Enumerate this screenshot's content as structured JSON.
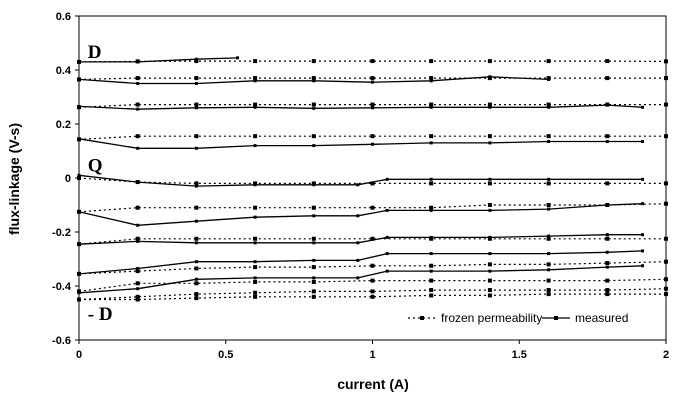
{
  "chart_data": {
    "type": "line",
    "title": "",
    "xlabel": "current (A)",
    "ylabel": "flux-linkage (V-s)",
    "xlim": [
      0,
      2
    ],
    "ylim": [
      -0.6,
      0.6
    ],
    "xticks": [
      "0",
      "0.5",
      "1",
      "1.5",
      "2"
    ],
    "yticks": [
      "-0.6",
      "-0.4",
      "-0.2",
      "0",
      "0.2",
      "0.4",
      "0.6"
    ],
    "grid": false,
    "legend_position": "bottom-right",
    "legend": [
      {
        "label": "frozen permeability",
        "style": "dotted"
      },
      {
        "label": "measured",
        "style": "solid"
      }
    ],
    "annotations": [
      {
        "text": "D",
        "x": 0.03,
        "y": 0.47
      },
      {
        "text": "Q",
        "x": 0.03,
        "y": 0.05
      },
      {
        "text": "- D",
        "x": 0.03,
        "y": -0.5
      }
    ],
    "series": [
      {
        "group": "frozen permeability",
        "points": [
          [
            0,
            0.43
          ],
          [
            0.2,
            0.432
          ],
          [
            0.4,
            0.433
          ],
          [
            0.6,
            0.433
          ],
          [
            0.8,
            0.433
          ],
          [
            1.0,
            0.433
          ],
          [
            1.2,
            0.433
          ],
          [
            1.4,
            0.433
          ],
          [
            1.6,
            0.433
          ],
          [
            1.8,
            0.433
          ],
          [
            2.0,
            0.432
          ]
        ]
      },
      {
        "group": "frozen permeability",
        "points": [
          [
            0,
            0.365
          ],
          [
            0.2,
            0.37
          ],
          [
            0.4,
            0.37
          ],
          [
            0.6,
            0.37
          ],
          [
            0.8,
            0.37
          ],
          [
            1.0,
            0.37
          ],
          [
            1.2,
            0.37
          ],
          [
            1.4,
            0.37
          ],
          [
            1.6,
            0.37
          ],
          [
            1.8,
            0.37
          ],
          [
            2.0,
            0.37
          ]
        ]
      },
      {
        "group": "frozen permeability",
        "points": [
          [
            0,
            0.262
          ],
          [
            0.2,
            0.272
          ],
          [
            0.4,
            0.272
          ],
          [
            0.6,
            0.272
          ],
          [
            0.8,
            0.272
          ],
          [
            1.0,
            0.272
          ],
          [
            1.2,
            0.272
          ],
          [
            1.4,
            0.272
          ],
          [
            1.6,
            0.272
          ],
          [
            1.8,
            0.272
          ],
          [
            2.0,
            0.272
          ]
        ]
      },
      {
        "group": "frozen permeability",
        "points": [
          [
            0,
            0.143
          ],
          [
            0.2,
            0.155
          ],
          [
            0.4,
            0.155
          ],
          [
            0.6,
            0.155
          ],
          [
            0.8,
            0.155
          ],
          [
            1.0,
            0.155
          ],
          [
            1.2,
            0.155
          ],
          [
            1.4,
            0.155
          ],
          [
            1.6,
            0.155
          ],
          [
            1.8,
            0.155
          ],
          [
            2.0,
            0.155
          ]
        ]
      },
      {
        "group": "frozen permeability",
        "points": [
          [
            0,
            0.0
          ],
          [
            0.2,
            -0.015
          ],
          [
            0.4,
            -0.02
          ],
          [
            0.6,
            -0.02
          ],
          [
            0.8,
            -0.02
          ],
          [
            1.0,
            -0.02
          ],
          [
            1.2,
            -0.02
          ],
          [
            1.4,
            -0.02
          ],
          [
            1.6,
            -0.02
          ],
          [
            1.8,
            -0.02
          ],
          [
            2.0,
            -0.02
          ]
        ]
      },
      {
        "group": "frozen permeability",
        "points": [
          [
            0,
            -0.125
          ],
          [
            0.2,
            -0.11
          ],
          [
            0.4,
            -0.11
          ],
          [
            0.6,
            -0.11
          ],
          [
            0.8,
            -0.11
          ],
          [
            1.0,
            -0.11
          ],
          [
            1.2,
            -0.11
          ],
          [
            1.4,
            -0.1
          ],
          [
            1.6,
            -0.1
          ],
          [
            1.8,
            -0.1
          ],
          [
            2.0,
            -0.095
          ]
        ]
      },
      {
        "group": "frozen permeability",
        "points": [
          [
            0,
            -0.245
          ],
          [
            0.2,
            -0.225
          ],
          [
            0.4,
            -0.225
          ],
          [
            0.6,
            -0.225
          ],
          [
            0.8,
            -0.225
          ],
          [
            1.0,
            -0.225
          ],
          [
            1.2,
            -0.225
          ],
          [
            1.4,
            -0.225
          ],
          [
            1.6,
            -0.225
          ],
          [
            1.8,
            -0.225
          ],
          [
            2.0,
            -0.225
          ]
        ]
      },
      {
        "group": "frozen permeability",
        "points": [
          [
            0,
            -0.355
          ],
          [
            0.2,
            -0.345
          ],
          [
            0.4,
            -0.335
          ],
          [
            0.6,
            -0.33
          ],
          [
            0.8,
            -0.33
          ],
          [
            1.0,
            -0.325
          ],
          [
            1.2,
            -0.325
          ],
          [
            1.4,
            -0.32
          ],
          [
            1.6,
            -0.32
          ],
          [
            1.8,
            -0.315
          ],
          [
            2.0,
            -0.31
          ]
        ]
      },
      {
        "group": "frozen permeability",
        "points": [
          [
            0,
            -0.42
          ],
          [
            0.2,
            -0.39
          ],
          [
            0.4,
            -0.39
          ],
          [
            0.6,
            -0.385
          ],
          [
            0.8,
            -0.385
          ],
          [
            1.0,
            -0.38
          ],
          [
            1.2,
            -0.38
          ],
          [
            1.4,
            -0.38
          ],
          [
            1.6,
            -0.38
          ],
          [
            1.8,
            -0.38
          ],
          [
            2.0,
            -0.375
          ]
        ]
      },
      {
        "group": "frozen permeability",
        "points": [
          [
            0,
            -0.45
          ],
          [
            0.2,
            -0.44
          ],
          [
            0.4,
            -0.43
          ],
          [
            0.6,
            -0.425
          ],
          [
            0.8,
            -0.42
          ],
          [
            1.0,
            -0.42
          ],
          [
            1.2,
            -0.415
          ],
          [
            1.4,
            -0.415
          ],
          [
            1.6,
            -0.415
          ],
          [
            1.8,
            -0.415
          ],
          [
            2.0,
            -0.41
          ]
        ]
      },
      {
        "group": "frozen permeability",
        "points": [
          [
            0,
            -0.45
          ],
          [
            0.2,
            -0.45
          ],
          [
            0.4,
            -0.445
          ],
          [
            0.6,
            -0.44
          ],
          [
            0.8,
            -0.44
          ],
          [
            1.0,
            -0.44
          ],
          [
            1.2,
            -0.435
          ],
          [
            1.4,
            -0.435
          ],
          [
            1.6,
            -0.43
          ],
          [
            1.8,
            -0.43
          ],
          [
            2.0,
            -0.43
          ]
        ]
      },
      {
        "group": "measured",
        "points": [
          [
            0,
            0.43
          ],
          [
            0.2,
            0.43
          ],
          [
            0.4,
            0.44
          ],
          [
            0.54,
            0.445
          ]
        ]
      },
      {
        "group": "measured",
        "points": [
          [
            0,
            0.365
          ],
          [
            0.2,
            0.35
          ],
          [
            0.4,
            0.35
          ],
          [
            0.6,
            0.36
          ],
          [
            0.8,
            0.36
          ],
          [
            1.0,
            0.355
          ],
          [
            1.2,
            0.36
          ],
          [
            1.4,
            0.375
          ],
          [
            1.6,
            0.365
          ]
        ]
      },
      {
        "group": "measured",
        "points": [
          [
            0,
            0.265
          ],
          [
            0.2,
            0.255
          ],
          [
            0.4,
            0.26
          ],
          [
            0.6,
            0.262
          ],
          [
            0.8,
            0.258
          ],
          [
            1.0,
            0.26
          ],
          [
            1.2,
            0.262
          ],
          [
            1.4,
            0.262
          ],
          [
            1.6,
            0.262
          ],
          [
            1.8,
            0.27
          ],
          [
            1.92,
            0.262
          ]
        ]
      },
      {
        "group": "measured",
        "points": [
          [
            0,
            0.145
          ],
          [
            0.2,
            0.11
          ],
          [
            0.4,
            0.11
          ],
          [
            0.6,
            0.12
          ],
          [
            0.8,
            0.12
          ],
          [
            1.0,
            0.125
          ],
          [
            1.2,
            0.13
          ],
          [
            1.4,
            0.13
          ],
          [
            1.6,
            0.135
          ],
          [
            1.8,
            0.135
          ],
          [
            1.92,
            0.135
          ]
        ]
      },
      {
        "group": "measured",
        "points": [
          [
            0,
            0.01
          ],
          [
            0.2,
            -0.015
          ],
          [
            0.4,
            -0.03
          ],
          [
            0.6,
            -0.025
          ],
          [
            0.8,
            -0.025
          ],
          [
            0.95,
            -0.025
          ],
          [
            1.05,
            -0.005
          ],
          [
            1.2,
            -0.005
          ],
          [
            1.4,
            -0.005
          ],
          [
            1.6,
            -0.005
          ],
          [
            1.92,
            -0.005
          ]
        ]
      },
      {
        "group": "measured",
        "points": [
          [
            0,
            -0.125
          ],
          [
            0.2,
            -0.175
          ],
          [
            0.4,
            -0.16
          ],
          [
            0.6,
            -0.145
          ],
          [
            0.8,
            -0.14
          ],
          [
            0.95,
            -0.14
          ],
          [
            1.05,
            -0.12
          ],
          [
            1.2,
            -0.12
          ],
          [
            1.4,
            -0.12
          ],
          [
            1.6,
            -0.115
          ],
          [
            1.8,
            -0.1
          ],
          [
            1.92,
            -0.095
          ]
        ]
      },
      {
        "group": "measured",
        "points": [
          [
            0,
            -0.245
          ],
          [
            0.2,
            -0.235
          ],
          [
            0.4,
            -0.24
          ],
          [
            0.6,
            -0.24
          ],
          [
            0.8,
            -0.24
          ],
          [
            0.95,
            -0.24
          ],
          [
            1.05,
            -0.22
          ],
          [
            1.2,
            -0.22
          ],
          [
            1.4,
            -0.22
          ],
          [
            1.6,
            -0.215
          ],
          [
            1.8,
            -0.21
          ],
          [
            1.92,
            -0.21
          ]
        ]
      },
      {
        "group": "measured",
        "points": [
          [
            0,
            -0.355
          ],
          [
            0.2,
            -0.335
          ],
          [
            0.4,
            -0.31
          ],
          [
            0.6,
            -0.31
          ],
          [
            0.8,
            -0.305
          ],
          [
            0.95,
            -0.305
          ],
          [
            1.05,
            -0.28
          ],
          [
            1.2,
            -0.28
          ],
          [
            1.4,
            -0.28
          ],
          [
            1.6,
            -0.28
          ],
          [
            1.8,
            -0.275
          ],
          [
            1.92,
            -0.27
          ]
        ]
      },
      {
        "group": "measured",
        "points": [
          [
            0,
            -0.425
          ],
          [
            0.2,
            -0.41
          ],
          [
            0.4,
            -0.375
          ],
          [
            0.6,
            -0.37
          ],
          [
            0.8,
            -0.37
          ],
          [
            0.95,
            -0.37
          ],
          [
            1.05,
            -0.345
          ],
          [
            1.2,
            -0.345
          ],
          [
            1.4,
            -0.345
          ],
          [
            1.6,
            -0.34
          ],
          [
            1.8,
            -0.33
          ],
          [
            1.92,
            -0.325
          ]
        ]
      }
    ]
  }
}
